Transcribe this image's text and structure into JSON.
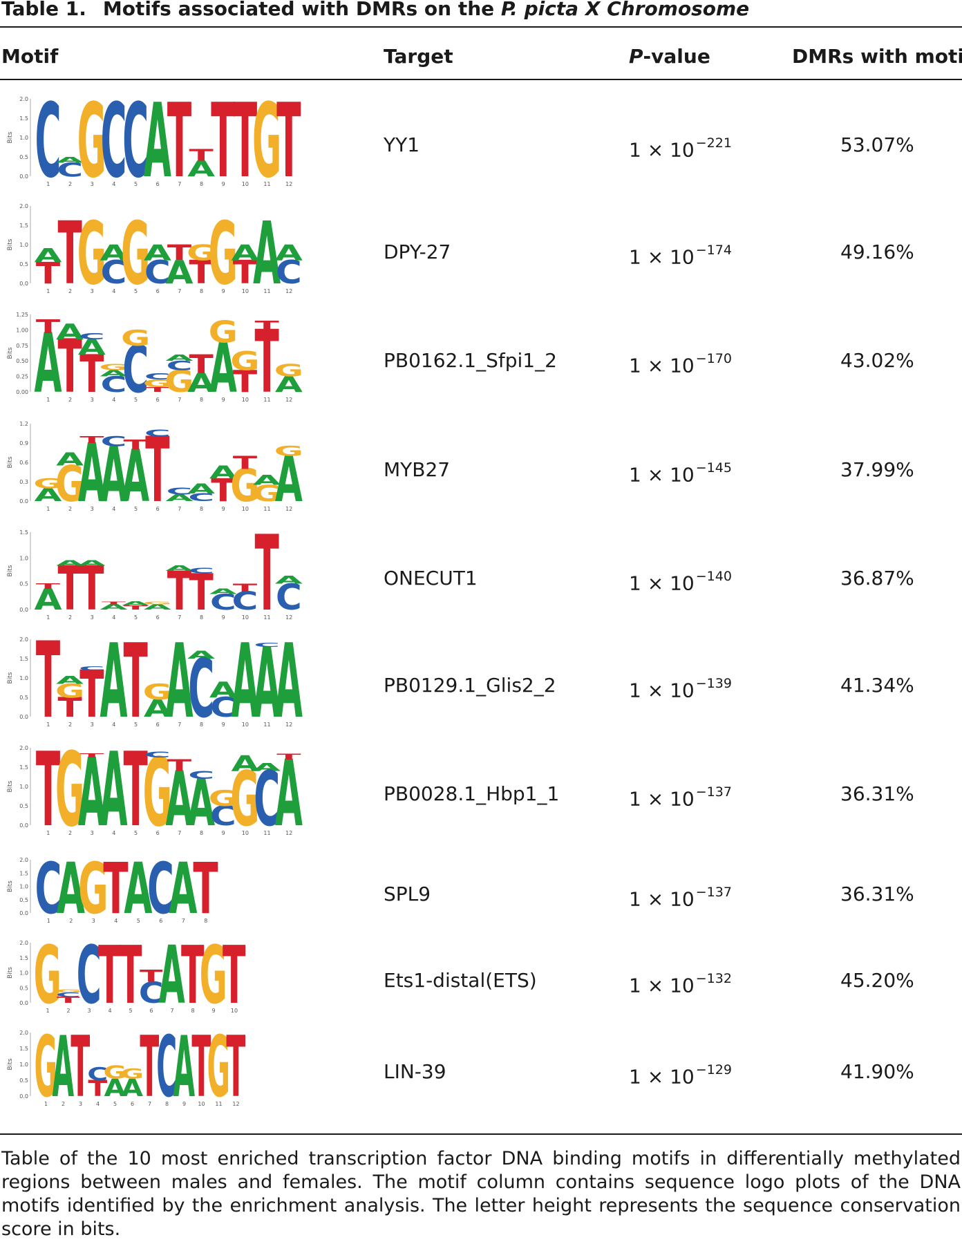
{
  "caption": {
    "label": "Table 1.",
    "title_plain": "Motifs associated with DMRs on the ",
    "title_italic": "P. picta X Chromosome"
  },
  "headers": {
    "motif": "Motif",
    "target": "Target",
    "pvalue_italic": "P",
    "pvalue_rest": "-value",
    "dmrs": "DMRs with motif"
  },
  "logo_axis_label": "Bits",
  "colors": {
    "A": "#1f9e3c",
    "C": "#2a5fb0",
    "G": "#f2b02a",
    "T": "#d6202c"
  },
  "rows": [
    {
      "target": "YY1",
      "p_base": "1 × 10",
      "p_exp": "−221",
      "dmrs": "53.07%",
      "yticks": [
        "2.0",
        "1.5",
        "1.0",
        "0.5",
        "0.0"
      ],
      "ymax": 2.0,
      "positions": [
        "1",
        "2",
        "3",
        "4",
        "5",
        "6",
        "7",
        "8",
        "9",
        "10",
        "11",
        "12"
      ],
      "columns": [
        [
          [
            "C",
            1.9
          ]
        ],
        [
          [
            "C",
            0.35
          ],
          [
            "A",
            0.15
          ]
        ],
        [
          [
            "G",
            1.9
          ]
        ],
        [
          [
            "C",
            1.9
          ]
        ],
        [
          [
            "C",
            1.9
          ]
        ],
        [
          [
            "A",
            1.9
          ]
        ],
        [
          [
            "T",
            1.9
          ]
        ],
        [
          [
            "A",
            0.4
          ],
          [
            "T",
            0.3
          ]
        ],
        [
          [
            "T",
            1.9
          ]
        ],
        [
          [
            "T",
            1.9
          ]
        ],
        [
          [
            "G",
            1.9
          ]
        ],
        [
          [
            "T",
            1.9
          ]
        ]
      ]
    },
    {
      "target": "DPY-27",
      "p_base": "1 × 10",
      "p_exp": "−174",
      "dmrs": "49.16%",
      "yticks": [
        "2.0",
        "1.5",
        "1.0",
        "0.5",
        "0.0"
      ],
      "ymax": 2.0,
      "positions": [
        "1",
        "2",
        "3",
        "4",
        "5",
        "6",
        "7",
        "8",
        "9",
        "10",
        "11",
        "12"
      ],
      "columns": [
        [
          [
            "T",
            0.55
          ],
          [
            "A",
            0.35
          ]
        ],
        [
          [
            "T",
            1.6
          ]
        ],
        [
          [
            "G",
            1.6
          ]
        ],
        [
          [
            "C",
            0.6
          ],
          [
            "A",
            0.4
          ]
        ],
        [
          [
            "G",
            1.6
          ]
        ],
        [
          [
            "C",
            0.6
          ],
          [
            "A",
            0.4
          ]
        ],
        [
          [
            "A",
            0.6
          ],
          [
            "T",
            0.4
          ]
        ],
        [
          [
            "T",
            0.6
          ],
          [
            "G",
            0.4
          ]
        ],
        [
          [
            "G",
            1.6
          ]
        ],
        [
          [
            "T",
            0.6
          ],
          [
            "A",
            0.4
          ]
        ],
        [
          [
            "A",
            1.6
          ]
        ],
        [
          [
            "C",
            0.6
          ],
          [
            "A",
            0.4
          ]
        ]
      ]
    },
    {
      "target": "PB0162.1_Sfpi1_2",
      "p_base": "1 × 10",
      "p_exp": "−170",
      "dmrs": "43.02%",
      "yticks": [
        "1.25",
        "1.00",
        "0.75",
        "0.50",
        "0.25",
        "0.00"
      ],
      "ymax": 1.25,
      "positions": [
        "1",
        "2",
        "3",
        "4",
        "5",
        "6",
        "7",
        "8",
        "9",
        "10",
        "11",
        "12"
      ],
      "columns": [
        [
          [
            "A",
            0.95
          ],
          [
            "T",
            0.22
          ]
        ],
        [
          [
            "T",
            0.85
          ],
          [
            "A",
            0.25
          ]
        ],
        [
          [
            "T",
            0.6
          ],
          [
            "A",
            0.25
          ],
          [
            "C",
            0.1
          ]
        ],
        [
          [
            "C",
            0.25
          ],
          [
            "A",
            0.1
          ],
          [
            "G",
            0.1
          ]
        ],
        [
          [
            "C",
            0.75
          ],
          [
            "G",
            0.25
          ]
        ],
        [
          [
            "T",
            0.08
          ],
          [
            "G",
            0.12
          ],
          [
            "C",
            0.1
          ]
        ],
        [
          [
            "G",
            0.35
          ],
          [
            "C",
            0.15
          ],
          [
            "A",
            0.1
          ]
        ],
        [
          [
            "A",
            0.3
          ],
          [
            "T",
            0.3
          ]
        ],
        [
          [
            "A",
            0.8
          ],
          [
            "G",
            0.35
          ]
        ],
        [
          [
            "T",
            0.35
          ],
          [
            "G",
            0.3
          ]
        ],
        [
          [
            "T",
            1.0
          ],
          [
            "T",
            0.15
          ]
        ],
        [
          [
            "A",
            0.25
          ],
          [
            "G",
            0.2
          ]
        ]
      ]
    },
    {
      "target": "MYB27",
      "p_base": "1 × 10",
      "p_exp": "−145",
      "dmrs": "37.99%",
      "yticks": [
        "1.2",
        "0.9",
        "0.6",
        "0.3",
        "0.0"
      ],
      "ymax": 1.2,
      "positions": [
        "1",
        "2",
        "3",
        "4",
        "5",
        "6",
        "7",
        "8",
        "9",
        "10",
        "11",
        "12"
      ],
      "columns": [
        [
          [
            "A",
            0.2
          ],
          [
            "G",
            0.15
          ]
        ],
        [
          [
            "G",
            0.55
          ],
          [
            "A",
            0.2
          ]
        ],
        [
          [
            "A",
            0.9
          ],
          [
            "T",
            0.1
          ]
        ],
        [
          [
            "A",
            0.85
          ],
          [
            "C",
            0.15
          ]
        ],
        [
          [
            "A",
            0.8
          ],
          [
            "T",
            0.15
          ]
        ],
        [
          [
            "T",
            1.0
          ],
          [
            "C",
            0.1
          ]
        ],
        [
          [
            "A",
            0.1
          ],
          [
            "C",
            0.1
          ]
        ],
        [
          [
            "C",
            0.12
          ],
          [
            "A",
            0.15
          ]
        ],
        [
          [
            "T",
            0.35
          ],
          [
            "A",
            0.2
          ]
        ],
        [
          [
            "G",
            0.5
          ],
          [
            "T",
            0.2
          ]
        ],
        [
          [
            "G",
            0.25
          ],
          [
            "A",
            0.15
          ]
        ],
        [
          [
            "A",
            0.7
          ],
          [
            "G",
            0.15
          ]
        ]
      ]
    },
    {
      "target": "ONECUT1",
      "p_base": "1 × 10",
      "p_exp": "−140",
      "dmrs": "36.87%",
      "yticks": [
        "1.5",
        "1.0",
        "0.5",
        "0.0"
      ],
      "ymax": 1.5,
      "positions": [
        "1",
        "2",
        "3",
        "4",
        "5",
        "6",
        "7",
        "8",
        "9",
        "10",
        "11",
        "12"
      ],
      "columns": [
        [
          [
            "A",
            0.4
          ],
          [
            "T",
            0.1
          ]
        ],
        [
          [
            "T",
            0.85
          ],
          [
            "A",
            0.1
          ]
        ],
        [
          [
            "T",
            0.85
          ],
          [
            "A",
            0.1
          ]
        ],
        [
          [
            "A",
            0.1
          ],
          [
            "T",
            0.05
          ]
        ],
        [
          [
            "T",
            0.08
          ],
          [
            "A",
            0.08
          ]
        ],
        [
          [
            "A",
            0.1
          ],
          [
            "G",
            0.05
          ]
        ],
        [
          [
            "T",
            0.75
          ],
          [
            "A",
            0.1
          ]
        ],
        [
          [
            "T",
            0.7
          ],
          [
            "C",
            0.1
          ]
        ],
        [
          [
            "C",
            0.3
          ],
          [
            "A",
            0.1
          ]
        ],
        [
          [
            "C",
            0.35
          ],
          [
            "T",
            0.15
          ]
        ],
        [
          [
            "T",
            1.45
          ]
        ],
        [
          [
            "C",
            0.5
          ],
          [
            "A",
            0.15
          ]
        ]
      ]
    },
    {
      "target": "PB0129.1_Glis2_2",
      "p_base": "1 × 10",
      "p_exp": "−139",
      "dmrs": "41.34%",
      "yticks": [
        "2.0",
        "1.5",
        "1.0",
        "0.5",
        "0.0"
      ],
      "ymax": 2.0,
      "positions": [
        "1",
        "2",
        "3",
        "4",
        "5",
        "6",
        "7",
        "8",
        "9",
        "10",
        "11",
        "12"
      ],
      "columns": [
        [
          [
            "T",
            1.95
          ]
        ],
        [
          [
            "T",
            0.5
          ],
          [
            "G",
            0.35
          ],
          [
            "A",
            0.2
          ]
        ],
        [
          [
            "T",
            1.2
          ],
          [
            "C",
            0.1
          ]
        ],
        [
          [
            "A",
            1.9
          ]
        ],
        [
          [
            "T",
            1.9
          ]
        ],
        [
          [
            "A",
            0.45
          ],
          [
            "G",
            0.4
          ]
        ],
        [
          [
            "A",
            1.9
          ]
        ],
        [
          [
            "C",
            1.5
          ],
          [
            "A",
            0.2
          ]
        ],
        [
          [
            "C",
            0.5
          ],
          [
            "A",
            0.4
          ]
        ],
        [
          [
            "A",
            1.9
          ]
        ],
        [
          [
            "A",
            1.8
          ],
          [
            "C",
            0.1
          ]
        ],
        [
          [
            "A",
            1.9
          ]
        ]
      ]
    },
    {
      "target": "PB0028.1_Hbp1_1",
      "p_base": "1 × 10",
      "p_exp": "−137",
      "dmrs": "36.31%",
      "yticks": [
        "2.0",
        "1.5",
        "1.0",
        "0.5",
        "0.0"
      ],
      "ymax": 2.0,
      "positions": [
        "1",
        "2",
        "3",
        "4",
        "5",
        "6",
        "7",
        "8",
        "9",
        "10",
        "11",
        "12"
      ],
      "columns": [
        [
          [
            "T",
            1.9
          ]
        ],
        [
          [
            "G",
            1.9
          ]
        ],
        [
          [
            "A",
            1.75
          ],
          [
            "T",
            0.1
          ]
        ],
        [
          [
            "A",
            1.9
          ]
        ],
        [
          [
            "T",
            1.9
          ]
        ],
        [
          [
            "G",
            1.75
          ],
          [
            "C",
            0.15
          ]
        ],
        [
          [
            "A",
            1.4
          ],
          [
            "T",
            0.3
          ]
        ],
        [
          [
            "A",
            1.2
          ],
          [
            "C",
            0.2
          ]
        ],
        [
          [
            "C",
            0.5
          ],
          [
            "G",
            0.4
          ]
        ],
        [
          [
            "G",
            1.4
          ],
          [
            "A",
            0.4
          ]
        ],
        [
          [
            "C",
            1.4
          ],
          [
            "A",
            0.2
          ]
        ],
        [
          [
            "A",
            1.7
          ],
          [
            "T",
            0.15
          ]
        ]
      ]
    },
    {
      "target": "SPL9",
      "p_base": "1 × 10",
      "p_exp": "−137",
      "dmrs": "36.31%",
      "yticks": [
        "2.0",
        "1.5",
        "1.0",
        "0.5",
        "0.0"
      ],
      "ymax": 2.0,
      "positions": [
        "1",
        "2",
        "3",
        "4",
        "5",
        "6",
        "7",
        "8"
      ],
      "columns": [
        [
          [
            "C",
            1.9
          ]
        ],
        [
          [
            "A",
            1.9
          ]
        ],
        [
          [
            "G",
            1.9
          ]
        ],
        [
          [
            "T",
            1.9
          ]
        ],
        [
          [
            "A",
            1.9
          ]
        ],
        [
          [
            "C",
            1.9
          ]
        ],
        [
          [
            "A",
            1.9
          ]
        ],
        [
          [
            "T",
            1.9
          ]
        ]
      ]
    },
    {
      "target": "Ets1-distal(ETS)",
      "p_base": "1 × 10",
      "p_exp": "−132",
      "dmrs": "45.20%",
      "yticks": [
        "2.0",
        "1.5",
        "1.0",
        "0.5",
        "0.0"
      ],
      "ymax": 2.0,
      "positions": [
        "1",
        "2",
        "3",
        "4",
        "5",
        "6",
        "7",
        "8",
        "9",
        "10"
      ],
      "columns": [
        [
          [
            "G",
            1.9
          ]
        ],
        [
          [
            "T",
            0.2
          ],
          [
            "C",
            0.15
          ],
          [
            "G",
            0.1
          ]
        ],
        [
          [
            "C",
            1.9
          ]
        ],
        [
          [
            "T",
            1.9
          ]
        ],
        [
          [
            "T",
            1.9
          ]
        ],
        [
          [
            "C",
            0.7
          ],
          [
            "T",
            0.4
          ]
        ],
        [
          [
            "A",
            1.9
          ]
        ],
        [
          [
            "T",
            1.9
          ]
        ],
        [
          [
            "G",
            1.9
          ]
        ],
        [
          [
            "T",
            1.9
          ]
        ]
      ]
    },
    {
      "target": "LIN-39",
      "p_base": "1 × 10",
      "p_exp": "−129",
      "dmrs": "41.90%",
      "yticks": [
        "2.0",
        "1.5",
        "1.0",
        "0.5",
        "0.0"
      ],
      "ymax": 2.0,
      "positions": [
        "1",
        "2",
        "3",
        "4",
        "5",
        "6",
        "7",
        "8",
        "9",
        "10",
        "11",
        "12"
      ],
      "columns": [
        [
          [
            "G",
            1.9
          ]
        ],
        [
          [
            "A",
            1.9
          ]
        ],
        [
          [
            "T",
            1.9
          ]
        ],
        [
          [
            "T",
            0.5
          ],
          [
            "C",
            0.4
          ]
        ],
        [
          [
            "A",
            0.55
          ],
          [
            "G",
            0.4
          ]
        ],
        [
          [
            "A",
            0.55
          ],
          [
            "G",
            0.3
          ]
        ],
        [
          [
            "T",
            1.9
          ]
        ],
        [
          [
            "C",
            1.9
          ]
        ],
        [
          [
            "A",
            1.9
          ]
        ],
        [
          [
            "T",
            1.9
          ]
        ],
        [
          [
            "G",
            1.9
          ]
        ],
        [
          [
            "T",
            1.9
          ]
        ]
      ]
    }
  ],
  "footnote": "Table of the 10 most enriched transcription factor DNA binding motifs in differentially methylated regions between males and females. The motif column contains sequence logo plots of the DNA motifs identified by the enrichment analysis. The letter height represents the sequence conservation score in bits."
}
